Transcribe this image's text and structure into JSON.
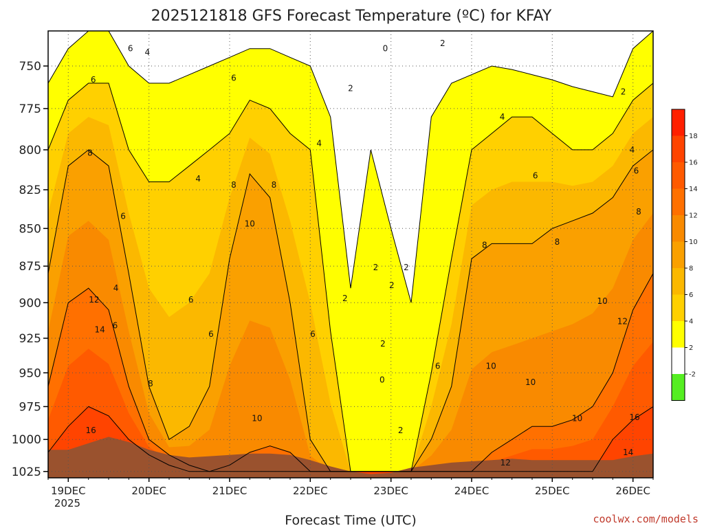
{
  "title": "2025121818 GFS Forecast Temperature (ºC) for KFAY",
  "xlabel": "Forecast Time (UTC)",
  "watermark": "coolwx.com/models",
  "chart_data": {
    "type": "heatmap",
    "title": "2025121818 GFS Forecast Temperature (ºC) for KFAY",
    "xlabel": "Forecast Time (UTC)",
    "ylabel": "",
    "x_ticks": [
      "19DEC",
      "20DEC",
      "21DEC",
      "22DEC",
      "23DEC",
      "24DEC",
      "25DEC",
      "26DEC"
    ],
    "x_tick_sub": "2025",
    "xlim_days": [
      18.75,
      26.25
    ],
    "y_ticks": [
      750,
      775,
      800,
      825,
      850,
      875,
      900,
      925,
      950,
      975,
      1000,
      1025
    ],
    "ylim": [
      730,
      1030
    ],
    "y_scale": "log-pressure",
    "grid": true,
    "colorbar": {
      "ticks": [
        18,
        16,
        14,
        12,
        10,
        8,
        6,
        4,
        2,
        -2
      ],
      "bands": [
        {
          "from": 18,
          "to": 20,
          "color": "#ff2000"
        },
        {
          "from": 16,
          "to": 18,
          "color": "#ff4400"
        },
        {
          "from": 14,
          "to": 16,
          "color": "#ff5a00"
        },
        {
          "from": 12,
          "to": 14,
          "color": "#ff7000"
        },
        {
          "from": 10,
          "to": 12,
          "color": "#f98a00"
        },
        {
          "from": 8,
          "to": 10,
          "color": "#faa000"
        },
        {
          "from": 6,
          "to": 8,
          "color": "#fbb800"
        },
        {
          "from": 4,
          "to": 6,
          "color": "#ffd000"
        },
        {
          "from": 2,
          "to": 4,
          "color": "#ffff00"
        },
        {
          "from": -2,
          "to": 2,
          "color": "#ffffff"
        },
        {
          "from": -4,
          "to": -2,
          "color": "#55ee22"
        }
      ]
    },
    "times_day": [
      18.75,
      19.0,
      19.25,
      19.5,
      19.75,
      20.0,
      20.25,
      20.5,
      20.75,
      21.0,
      21.25,
      21.5,
      21.75,
      22.0,
      22.25,
      22.5,
      22.75,
      23.0,
      23.25,
      23.5,
      23.75,
      24.0,
      24.25,
      24.5,
      24.75,
      25.0,
      25.25,
      25.5,
      25.75,
      26.0,
      26.25
    ],
    "surface_pressure": [
      1008,
      1008,
      1003,
      998,
      1002,
      1008,
      1012,
      1014,
      1013,
      1012,
      1011,
      1011,
      1012,
      1016,
      1021,
      1025,
      1027,
      1026,
      1022,
      1020,
      1018,
      1017,
      1016,
      1015,
      1016,
      1016,
      1016,
      1016,
      1016,
      1013,
      1011
    ],
    "series": [
      {
        "name": "16 °C",
        "pressure": [
          1010,
          990,
          975,
          982,
          1000,
          1012,
          1020,
          1025,
          1025,
          1025,
          1025,
          1025,
          1025,
          1025,
          1025,
          1025,
          1025,
          1025,
          1025,
          1025,
          1025,
          1025,
          1025,
          1025,
          1025,
          1025,
          1025,
          1025,
          1000,
          985,
          975
        ]
      },
      {
        "name": "12 °C",
        "pressure": [
          960,
          900,
          890,
          905,
          960,
          1000,
          1012,
          1020,
          1025,
          1020,
          1010,
          1005,
          1010,
          1025,
          1025,
          1025,
          1025,
          1025,
          1025,
          1025,
          1025,
          1025,
          1010,
          1000,
          990,
          990,
          985,
          975,
          950,
          905,
          880
        ]
      },
      {
        "name": "8 °C",
        "pressure": [
          880,
          810,
          800,
          810,
          880,
          960,
          1000,
          990,
          960,
          870,
          815,
          830,
          900,
          1000,
          1025,
          1025,
          1025,
          1025,
          1025,
          1000,
          960,
          870,
          860,
          860,
          860,
          850,
          845,
          840,
          830,
          810,
          800
        ]
      },
      {
        "name": "4 °C",
        "pressure": [
          800,
          770,
          760,
          760,
          800,
          820,
          820,
          810,
          800,
          790,
          770,
          775,
          790,
          800,
          920,
          1025,
          1025,
          1025,
          1025,
          950,
          870,
          800,
          790,
          780,
          780,
          790,
          800,
          800,
          790,
          770,
          760
        ]
      },
      {
        "name": "2 °C",
        "pressure": [
          760,
          740,
          730,
          730,
          750,
          760,
          760,
          755,
          750,
          745,
          740,
          740,
          745,
          750,
          780,
          890,
          800,
          850,
          900,
          780,
          760,
          755,
          750,
          752,
          755,
          758,
          762,
          765,
          768,
          740,
          730
        ]
      }
    ],
    "contour_labels": [
      {
        "text": "6",
        "day": 19.77,
        "p": 740
      },
      {
        "text": "4",
        "day": 19.98,
        "p": 742
      },
      {
        "text": "6",
        "day": 19.31,
        "p": 758
      },
      {
        "text": "6",
        "day": 21.05,
        "p": 757
      },
      {
        "text": "8",
        "day": 19.27,
        "p": 802
      },
      {
        "text": "4",
        "day": 20.61,
        "p": 818
      },
      {
        "text": "8",
        "day": 21.05,
        "p": 822
      },
      {
        "text": "8",
        "day": 21.55,
        "p": 822
      },
      {
        "text": "4",
        "day": 22.11,
        "p": 796
      },
      {
        "text": "6",
        "day": 19.68,
        "p": 842
      },
      {
        "text": "10",
        "day": 21.25,
        "p": 847
      },
      {
        "text": "4",
        "day": 19.59,
        "p": 890
      },
      {
        "text": "12",
        "day": 19.32,
        "p": 898
      },
      {
        "text": "6",
        "day": 20.52,
        "p": 898
      },
      {
        "text": "6",
        "day": 19.58,
        "p": 916
      },
      {
        "text": "14",
        "day": 19.39,
        "p": 919
      },
      {
        "text": "6",
        "day": 20.77,
        "p": 922
      },
      {
        "text": "6",
        "day": 22.03,
        "p": 922
      },
      {
        "text": "2",
        "day": 22.5,
        "p": 763
      },
      {
        "text": "0",
        "day": 22.93,
        "p": 740
      },
      {
        "text": "2",
        "day": 23.64,
        "p": 737
      },
      {
        "text": "2",
        "day": 23.19,
        "p": 876
      },
      {
        "text": "2",
        "day": 22.81,
        "p": 876
      },
      {
        "text": "2",
        "day": 23.01,
        "p": 888
      },
      {
        "text": "2",
        "day": 22.43,
        "p": 897
      },
      {
        "text": "2",
        "day": 22.9,
        "p": 929
      },
      {
        "text": "0",
        "day": 22.89,
        "p": 955
      },
      {
        "text": "6",
        "day": 23.58,
        "p": 945
      },
      {
        "text": "2",
        "day": 23.12,
        "p": 993
      },
      {
        "text": "8",
        "day": 20.02,
        "p": 958
      },
      {
        "text": "10",
        "day": 21.34,
        "p": 984
      },
      {
        "text": "16",
        "day": 19.28,
        "p": 993
      },
      {
        "text": "8",
        "day": 24.16,
        "p": 861
      },
      {
        "text": "8",
        "day": 25.06,
        "p": 859
      },
      {
        "text": "4",
        "day": 24.38,
        "p": 780
      },
      {
        "text": "6",
        "day": 24.79,
        "p": 816
      },
      {
        "text": "2",
        "day": 25.88,
        "p": 765
      },
      {
        "text": "4",
        "day": 25.99,
        "p": 800
      },
      {
        "text": "6",
        "day": 26.04,
        "p": 813
      },
      {
        "text": "8",
        "day": 26.07,
        "p": 839
      },
      {
        "text": "10",
        "day": 24.24,
        "p": 945
      },
      {
        "text": "10",
        "day": 24.73,
        "p": 957
      },
      {
        "text": "10",
        "day": 25.62,
        "p": 899
      },
      {
        "text": "12",
        "day": 25.87,
        "p": 913
      },
      {
        "text": "10",
        "day": 25.31,
        "p": 984
      },
      {
        "text": "16",
        "day": 26.02,
        "p": 983
      },
      {
        "text": "12",
        "day": 24.42,
        "p": 1018
      },
      {
        "text": "14",
        "day": 25.94,
        "p": 1010
      }
    ]
  }
}
